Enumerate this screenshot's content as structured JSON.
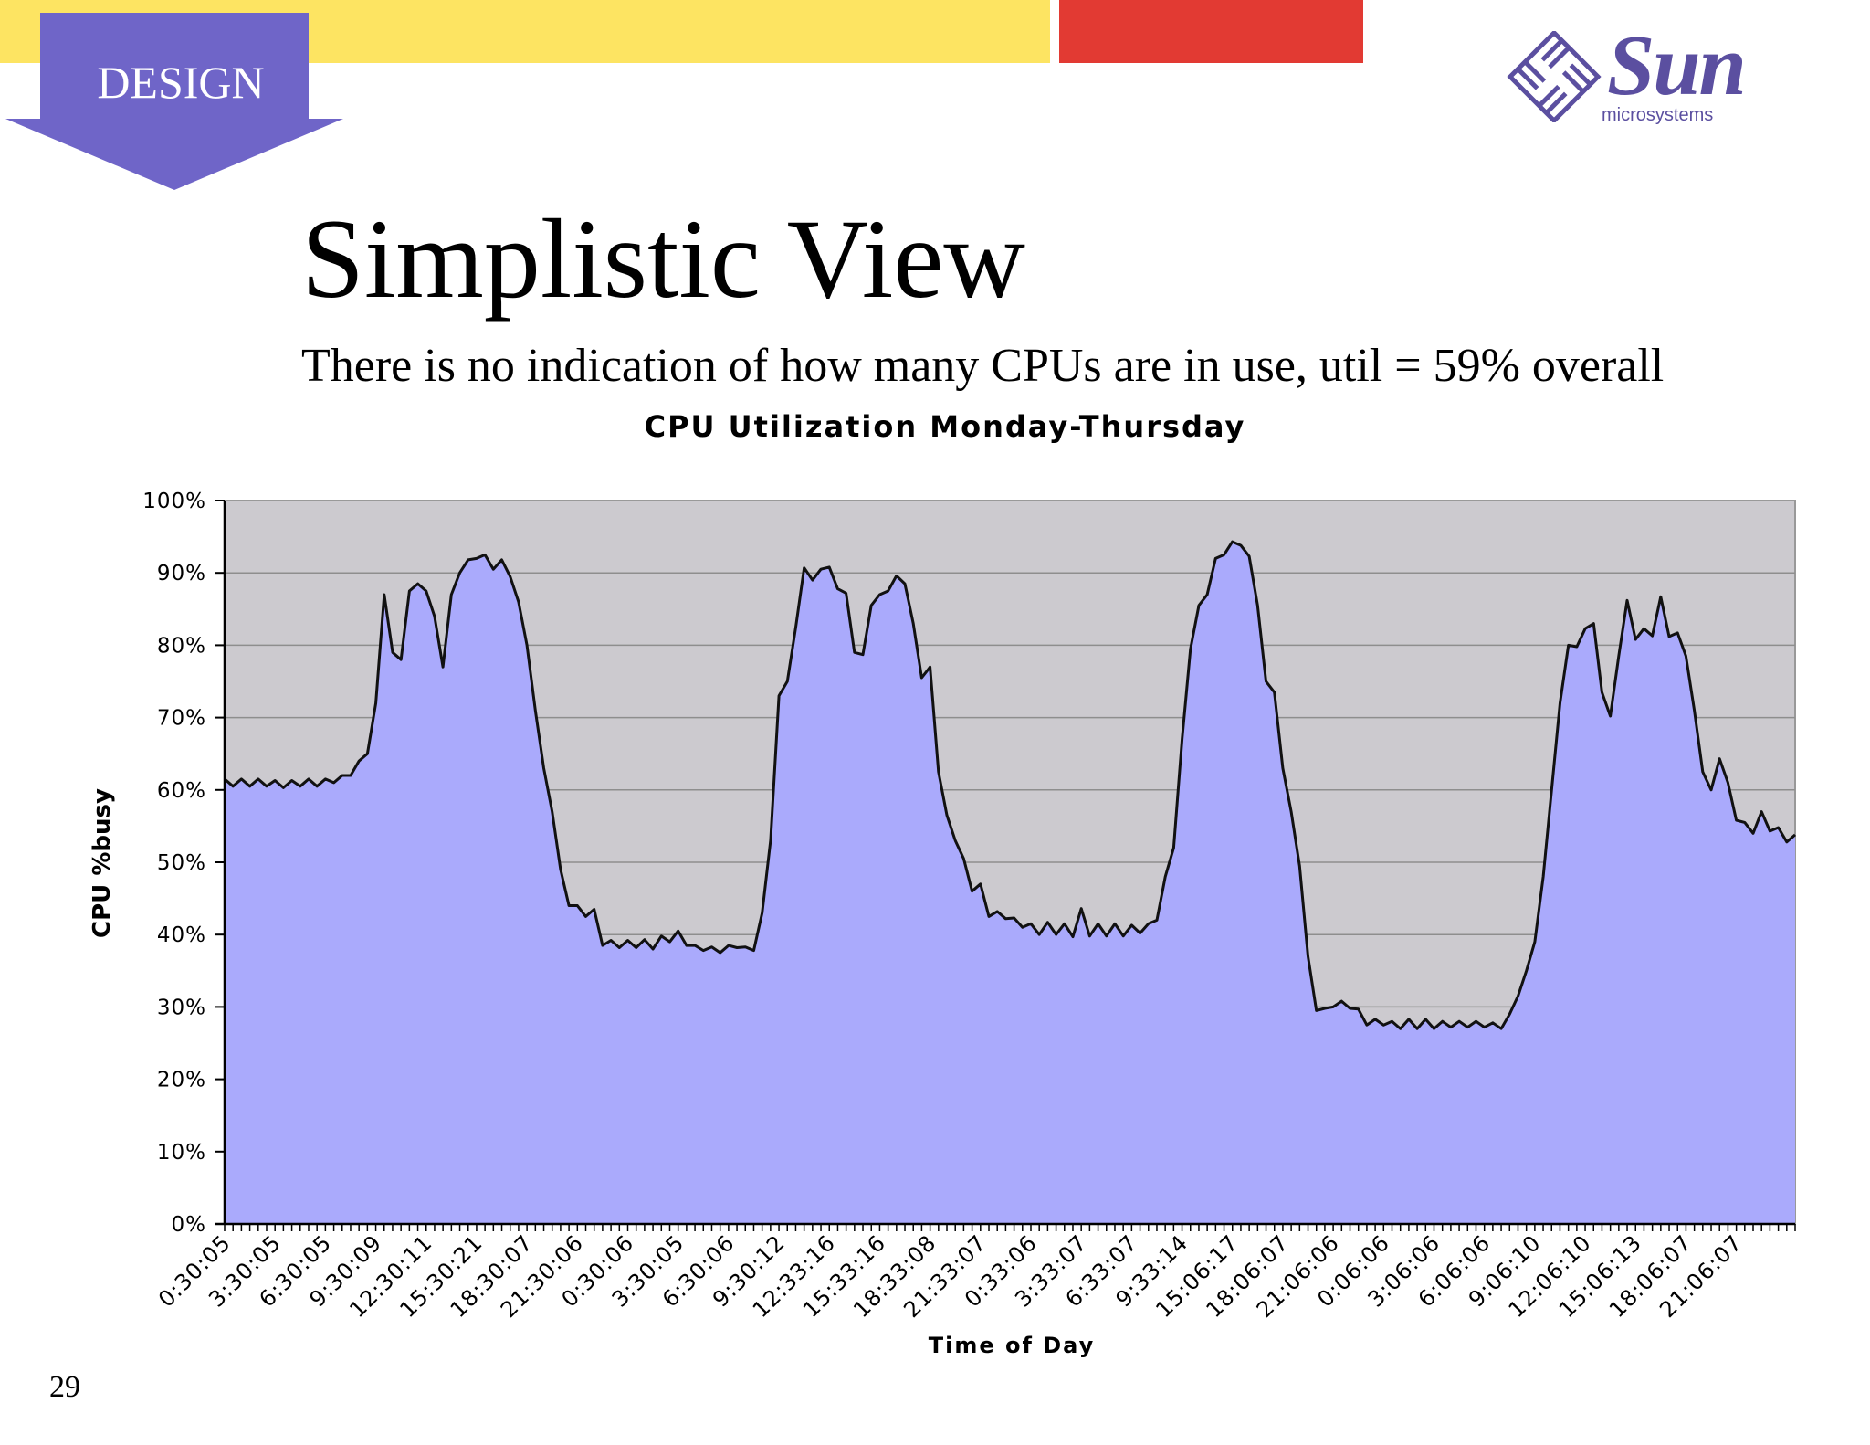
{
  "header": {
    "section_tag": "DESIGN",
    "logo_text": "Sun",
    "logo_subtext": "microsystems",
    "colors": {
      "yellow": "#fde462",
      "red": "#e23a33",
      "tag": "#6f65c8",
      "logo": "#5b4fa0"
    }
  },
  "slide": {
    "title": "Simplistic View",
    "subtitle": "There is no indication of how many CPUs are in use, util = 59% overall",
    "page_number": "29"
  },
  "chart_data": {
    "type": "area",
    "title": "CPU Utilization Monday-Thursday",
    "xlabel": "Time of Day",
    "ylabel": "CPU %busy",
    "ylim": [
      0,
      100
    ],
    "y_ticks": [
      "0%",
      "10%",
      "20%",
      "30%",
      "40%",
      "50%",
      "60%",
      "70%",
      "80%",
      "90%",
      "100%"
    ],
    "x_tick_labels": [
      "0:30:05",
      "3:30:05",
      "6:30:05",
      "9:30:09",
      "12:30:11",
      "15:30:21",
      "18:30:07",
      "21:30:06",
      "0:30:06",
      "3:30:05",
      "6:30:06",
      "9:30:12",
      "12:33:16",
      "15:33:16",
      "18:33:08",
      "21:33:07",
      "0:33:06",
      "3:33:07",
      "6:33:07",
      "9:33:14",
      "15:06:17",
      "18:06:07",
      "21:06:06",
      "0:06:06",
      "3:06:06",
      "6:06:06",
      "9:06:10",
      "12:06:10",
      "15:06:13",
      "18:06:07",
      "21:06:07"
    ],
    "grid": true,
    "fill_color": "#aaaafc",
    "plot_background": "#cccaCF",
    "values": [
      61.5,
      60.5,
      61.5,
      60.5,
      61.5,
      60.5,
      61.3,
      60.3,
      61.3,
      60.5,
      61.5,
      60.5,
      61.5,
      61,
      62,
      62,
      64,
      65,
      72,
      87,
      79,
      78,
      87.5,
      88.5,
      87.5,
      84,
      77,
      87,
      90,
      91.8,
      92,
      92.5,
      90.5,
      91.8,
      89.5,
      86,
      80,
      71,
      63,
      57,
      49,
      44,
      44,
      42.5,
      43.5,
      38.5,
      39.2,
      38.2,
      39.2,
      38.2,
      39.3,
      38,
      39.8,
      39,
      40.5,
      38.5,
      38.5,
      37.8,
      38.3,
      37.5,
      38.5,
      38.2,
      38.3,
      37.8,
      43,
      53,
      73,
      75,
      82.5,
      90.7,
      89,
      90.5,
      90.8,
      87.8,
      87.2,
      79,
      78.7,
      85.5,
      87,
      87.5,
      89.6,
      88.5,
      83,
      75.5,
      77,
      62.5,
      56.5,
      53,
      50.5,
      46,
      47,
      42.5,
      43.2,
      42.2,
      42.3,
      41,
      41.5,
      40,
      41.7,
      40,
      41.5,
      39.7,
      43.6,
      39.8,
      41.5,
      39.8,
      41.5,
      39.8,
      41.3,
      40.2,
      41.5,
      42,
      48,
      52,
      67,
      79.5,
      85.5,
      87,
      92,
      92.5,
      94.3,
      93.8,
      92.3,
      85.5,
      75,
      73.5,
      63,
      57,
      49.5,
      37,
      29.5,
      29.8,
      30,
      30.8,
      29.8,
      29.7,
      27.5,
      28.3,
      27.5,
      28,
      27,
      28.3,
      27,
      28.3,
      27,
      28,
      27.2,
      28,
      27.2,
      28,
      27.2,
      27.8,
      27,
      29,
      31.5,
      35,
      39,
      48,
      60,
      72,
      80,
      79.8,
      82.3,
      83,
      73.5,
      70.2,
      78.5,
      86.2,
      80.8,
      82.3,
      81.3,
      86.7,
      81.2,
      81.7,
      78.5,
      71,
      62.5,
      60,
      64.3,
      61,
      55.8,
      55.5,
      54,
      57,
      54.3,
      54.8,
      52.8,
      53.8
    ]
  }
}
